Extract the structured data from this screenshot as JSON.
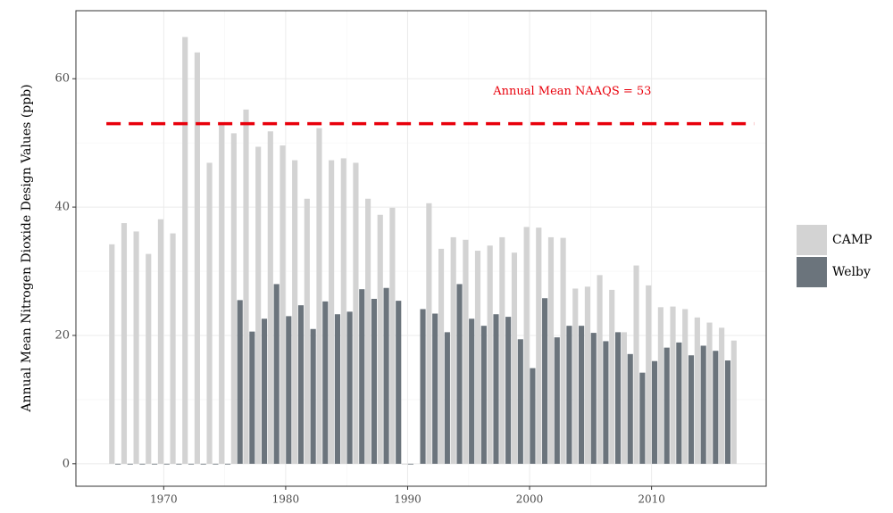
{
  "chart_data": {
    "type": "bar",
    "ylabel": "Annual Mean Nitrogen Dioxide Design Values (ppb)",
    "x": [
      1966,
      1967,
      1968,
      1969,
      1970,
      1971,
      1972,
      1973,
      1974,
      1975,
      1976,
      1977,
      1978,
      1979,
      1980,
      1981,
      1982,
      1983,
      1984,
      1985,
      1986,
      1987,
      1988,
      1989,
      1990,
      1991,
      1992,
      1993,
      1994,
      1995,
      1996,
      1997,
      1998,
      1999,
      2000,
      2001,
      2002,
      2003,
      2004,
      2005,
      2006,
      2007,
      2008,
      2009,
      2010,
      2011,
      2012,
      2013,
      2014,
      2015,
      2016,
      2017
    ],
    "series": [
      {
        "name": "CAMP",
        "color": "#d3d3d3",
        "values": [
          34.2,
          37.5,
          36.2,
          32.7,
          38.1,
          35.9,
          66.5,
          64.1,
          46.9,
          52.8,
          51.5,
          55.2,
          49.4,
          51.8,
          49.6,
          47.3,
          41.3,
          52.3,
          47.3,
          47.6,
          46.9,
          41.3,
          38.8,
          39.9,
          0,
          null,
          40.6,
          33.5,
          35.3,
          34.9,
          33.2,
          34.0,
          35.3,
          32.9,
          36.9,
          36.8,
          35.3,
          35.2,
          27.3,
          27.6,
          29.4,
          27.1,
          20.5,
          30.9,
          27.8,
          24.4,
          24.5,
          24.1,
          22.8,
          22.0,
          21.2,
          19.2
        ]
      },
      {
        "name": "Welby",
        "color": "#6b747c",
        "values": [
          0,
          0,
          0,
          0,
          0,
          0,
          0,
          0,
          0,
          0,
          25.5,
          20.6,
          22.6,
          28.0,
          23.0,
          24.7,
          21.0,
          25.3,
          23.3,
          23.7,
          27.2,
          25.7,
          27.4,
          25.4,
          0,
          24.1,
          23.4,
          20.5,
          28.0,
          22.6,
          21.5,
          23.3,
          22.9,
          19.4,
          14.9,
          25.8,
          19.7,
          21.5,
          21.5,
          20.4,
          19.1,
          20.5,
          17.1,
          14.2,
          16.0,
          18.1,
          18.9,
          16.9,
          18.4,
          17.6,
          16.1,
          null
        ]
      }
    ],
    "reference_line": {
      "value": 53,
      "color": "#e8000b",
      "label": "Annual Mean NAAQS = 53"
    },
    "xlim": [
      1962.8,
      2019.4
    ],
    "xticks": [
      1970,
      1980,
      1990,
      2000,
      2010
    ],
    "ylim": [
      -3.5,
      70.6
    ],
    "yticks": [
      0,
      20,
      40,
      60
    ],
    "grid": true,
    "legend": "right"
  }
}
